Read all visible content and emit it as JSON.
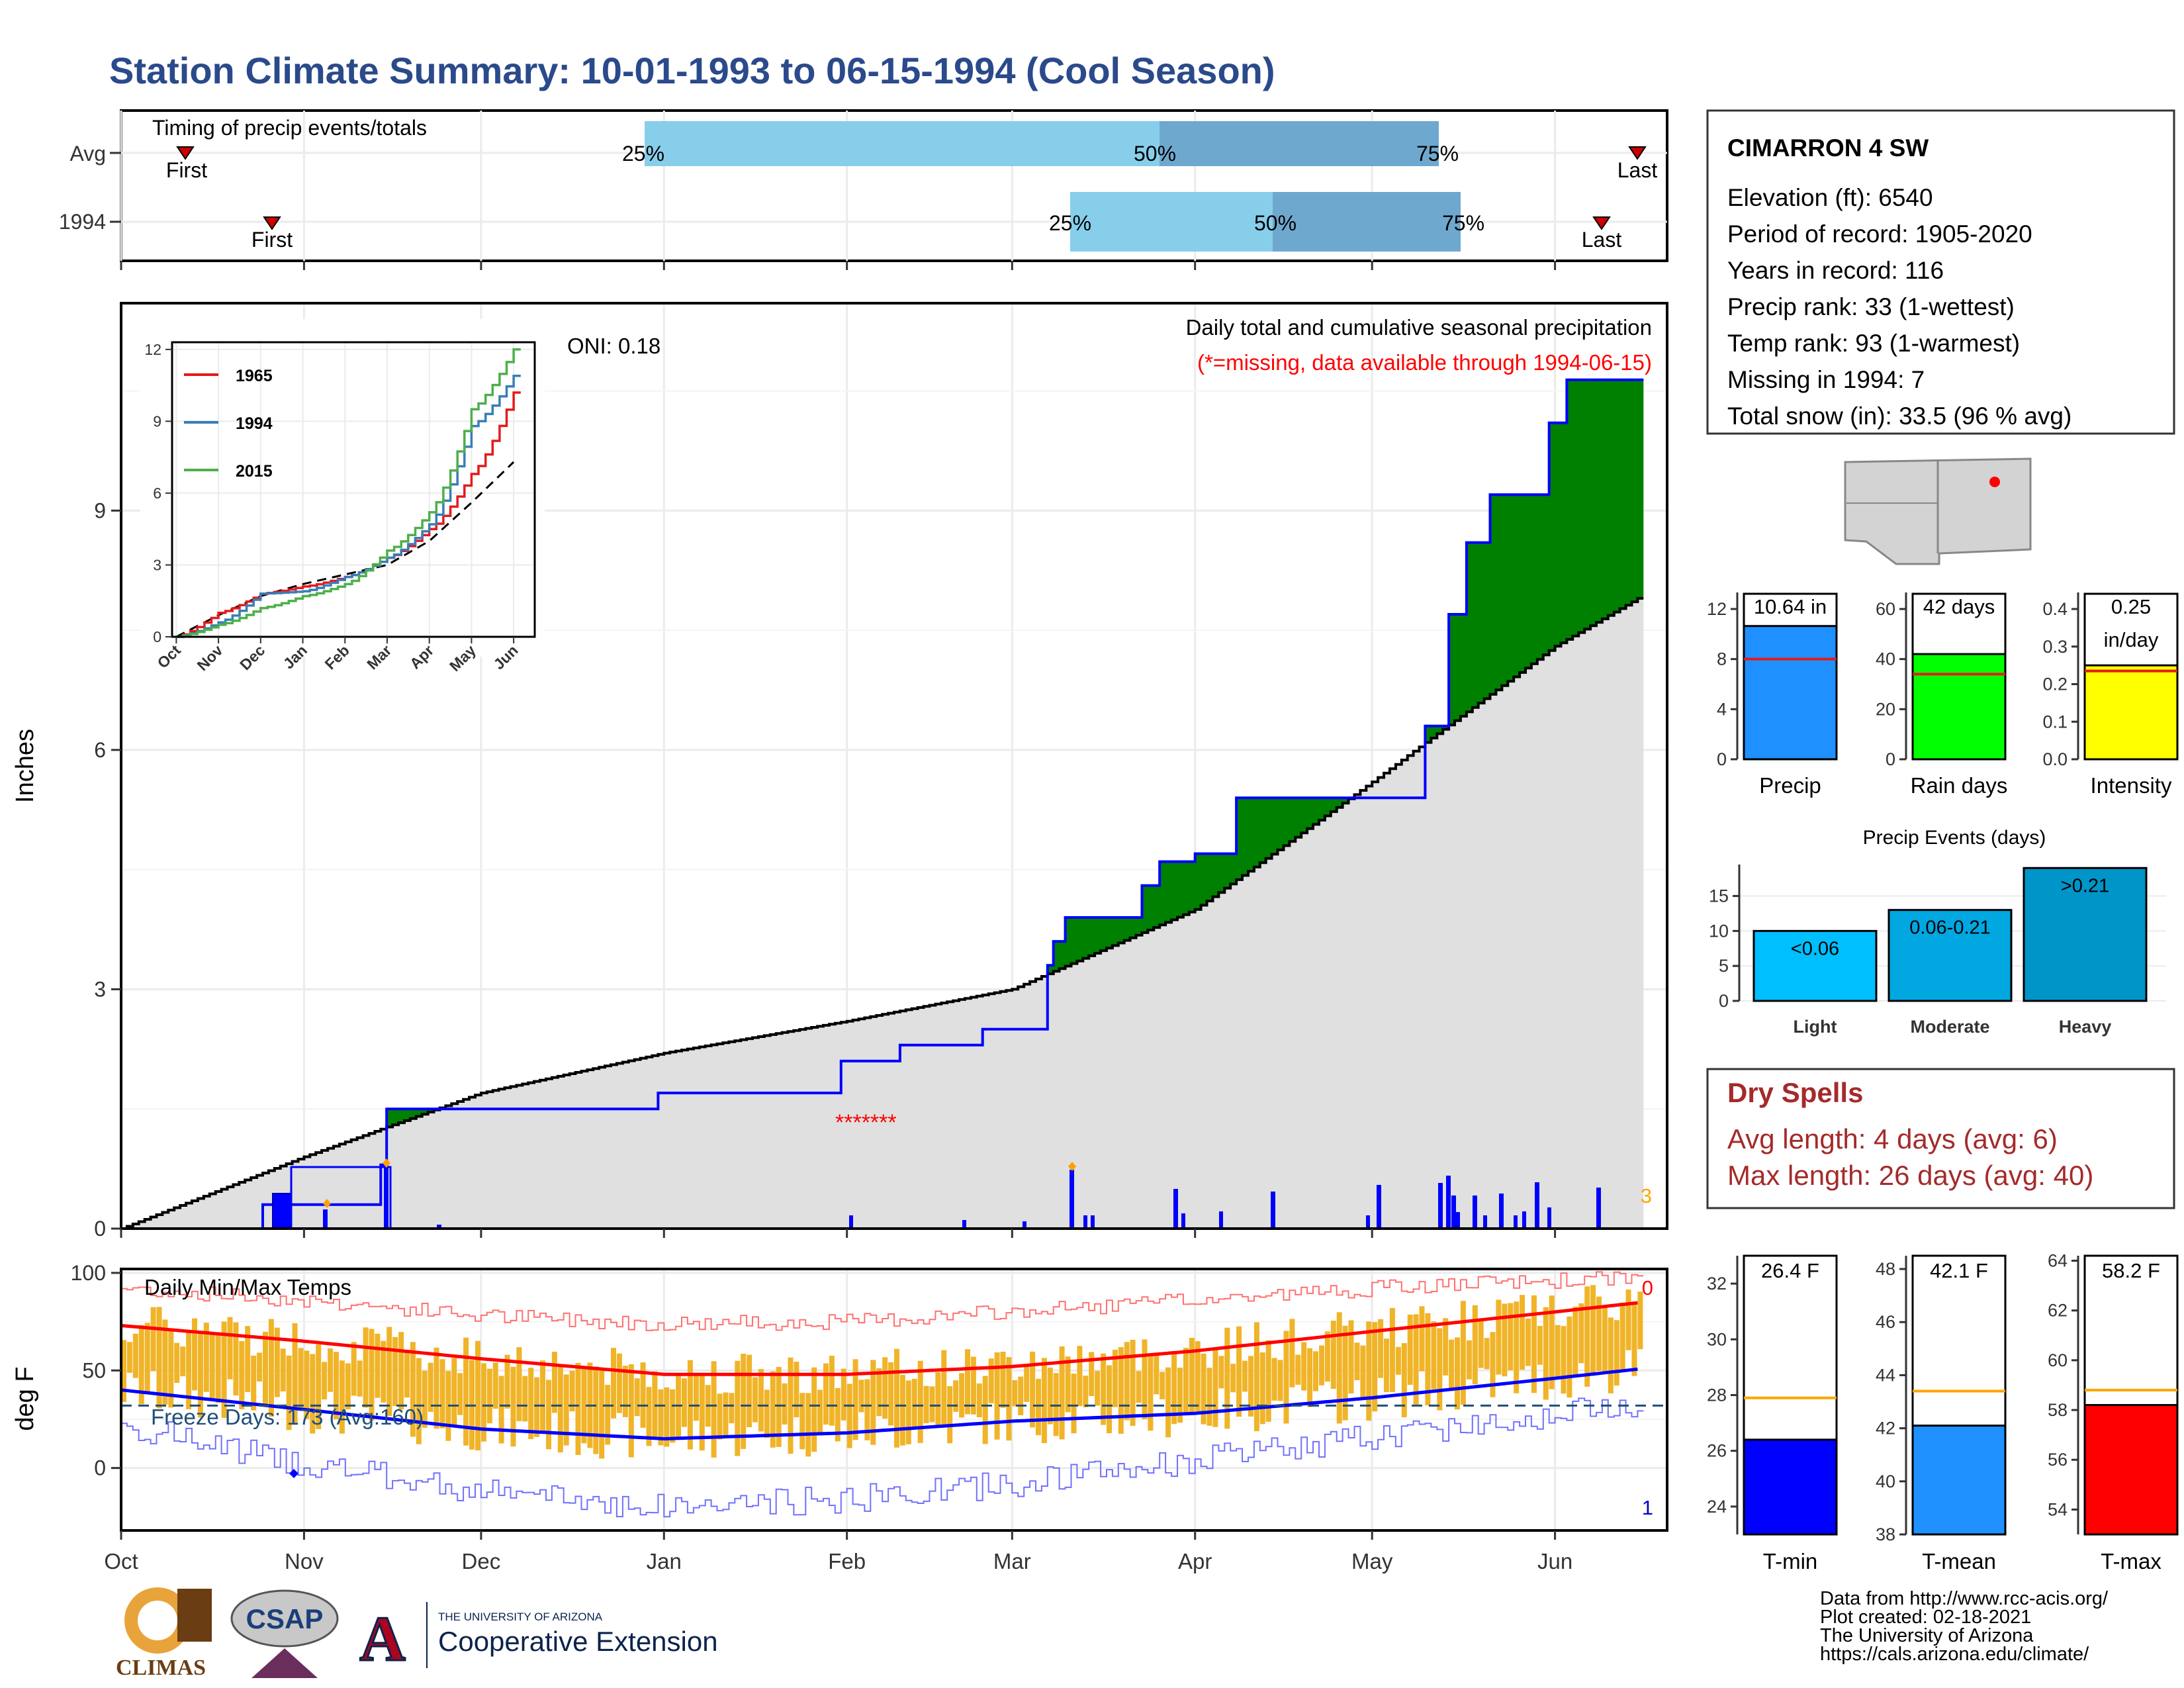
{
  "title": "Station Climate Summary: 10-01-1993 to 06-15-1994 (Cool Season)",
  "colors": {
    "title": "#2a4a8b",
    "light_blue": "#87ceeb",
    "mid_blue": "#6fa8cf",
    "brown": "#8b5a00",
    "green": "#008000",
    "grey_fill": "#e0e0e0",
    "orange": "#f0b429",
    "red": "#ff0000",
    "blue": "#0000ff",
    "dry_spell_red": "#a52a2a"
  },
  "timing": {
    "label": "Timing of precip events/totals",
    "rows": [
      "Avg",
      "1994"
    ],
    "avg": {
      "p25_label": "25%",
      "p50_label": "50%",
      "p75_label": "75%",
      "first_label": "First",
      "last_label": "Last"
    },
    "y1994": {
      "p25_label": "25%",
      "p50_label": "50%",
      "p75_label": "75%",
      "first_label": "First",
      "last_label": "Last"
    }
  },
  "main": {
    "ylabel": "Inches",
    "yticks": [
      "0",
      "3",
      "6",
      "9"
    ],
    "header": "Daily total and cumulative seasonal precipitation",
    "missing_note": "(*=missing, data available through 1994-06-15)",
    "oni": "ONI: 0.18",
    "corner_count": "3"
  },
  "inset": {
    "yticks": [
      "0",
      "3",
      "6",
      "9",
      "12"
    ],
    "xticks": [
      "Oct",
      "Nov",
      "Dec",
      "Jan",
      "Feb",
      "Mar",
      "Apr",
      "May",
      "Jun"
    ],
    "legend": [
      {
        "name": "1965",
        "color": "#e41a1c"
      },
      {
        "name": "1994",
        "color": "#377eb8"
      },
      {
        "name": "2015",
        "color": "#4daf4a"
      }
    ]
  },
  "temps": {
    "label": "Daily Min/Max Temps",
    "ylabel": "deg F",
    "yticks": [
      "0",
      "50",
      "100"
    ],
    "freeze": "Freeze Days: 173 (Avg:160)",
    "top_count": "0",
    "bottom_count": "1",
    "xticks": [
      "Oct",
      "Nov",
      "Dec",
      "Jan",
      "Feb",
      "Mar",
      "Apr",
      "May",
      "Jun"
    ]
  },
  "station": {
    "name": "CIMARRON 4 SW",
    "lines": [
      "Elevation (ft): 6540",
      "Period of record: 1905-2020",
      "Years in record: 116",
      "Precip rank: 33 (1-wettest)",
      "Temp rank: 93 (1-warmest)",
      "Missing in 1994: 7",
      "Total snow (in): 33.5 (96 % avg)"
    ]
  },
  "mini_bars": [
    {
      "label": "Precip",
      "value_label": "10.64 in",
      "value_label2": "",
      "value": 10.64,
      "avg": 8.0,
      "ymax": 12,
      "yticks": [
        "0",
        "4",
        "8",
        "12"
      ],
      "color": "#1e90ff"
    },
    {
      "label": "Rain days",
      "value_label": "42 days",
      "value_label2": "",
      "value": 42,
      "avg": 34,
      "ymax": 60,
      "yticks": [
        "0",
        "20",
        "40",
        "60"
      ],
      "color": "#00ff00"
    },
    {
      "label": "Intensity",
      "value_label": "0.25",
      "value_label2": "in/day",
      "value": 0.25,
      "avg": 0.235,
      "ymax": 0.4,
      "yticks": [
        "0.0",
        "0.1",
        "0.2",
        "0.3",
        "0.4"
      ],
      "color": "#ffff00"
    }
  ],
  "events": {
    "title": "Precip Events (days)",
    "yticks": [
      "0",
      "5",
      "10",
      "15"
    ],
    "bars": [
      {
        "label": "Light",
        "value_label": "<0.06",
        "value": 10,
        "color": "#00bfff"
      },
      {
        "label": "Moderate",
        "value_label": "0.06-0.21",
        "value": 13,
        "color": "#00a7e1"
      },
      {
        "label": "Heavy",
        "value_label": ">0.21",
        "value": 19,
        "color": "#0095c8"
      }
    ]
  },
  "dry_spells": {
    "title": "Dry Spells",
    "avg": "Avg length: 4 days (avg: 6)",
    "max": "Max length: 26 days (avg: 40)"
  },
  "temp_bars": [
    {
      "label": "T-min",
      "value_label": "26.4 F",
      "value": 26.4,
      "avg": 27.9,
      "ymin": 23,
      "ymax": 33,
      "yticks": [
        "24",
        "26",
        "28",
        "30",
        "32"
      ],
      "color": "#0000ff"
    },
    {
      "label": "T-mean",
      "value_label": "42.1 F",
      "value": 42.1,
      "avg": 43.4,
      "ymin": 38,
      "ymax": 48.5,
      "yticks": [
        "38",
        "40",
        "42",
        "44",
        "46",
        "48"
      ],
      "color": "#1e90ff"
    },
    {
      "label": "T-max",
      "value_label": "58.2 F",
      "value": 58.2,
      "avg": 58.8,
      "ymin": 53,
      "ymax": 64.2,
      "yticks": [
        "54",
        "56",
        "58",
        "60",
        "62",
        "64"
      ],
      "color": "#ff0000"
    }
  ],
  "footer": [
    "Data from http://www.rcc-acis.org/",
    "Plot created: 02-18-2021",
    "The University of Arizona",
    "https://cals.arizona.edu/climate/"
  ],
  "logos": {
    "climas": "CLIMAS",
    "csap": "CSAP",
    "ua_small": "THE UNIVERSITY OF ARIZONA",
    "coop": "Cooperative Extension"
  },
  "chart_data": [
    {
      "type": "area",
      "title": "Daily total and cumulative seasonal precipitation",
      "ylabel": "Inches",
      "ylim": [
        0,
        11.6
      ],
      "series": [
        {
          "name": "",
          "kind": "cumulative",
          "x": [
            "1993-10-01",
            "1993-10-25",
            "1993-11-14",
            "1993-11-15",
            "1993-12-31",
            "1994-01-31",
            "1994-02-10",
            "1994-02-24",
            "1994-03-07",
            "1994-03-08",
            "1994-03-10",
            "1994-03-23",
            "1994-03-26",
            "1994-04-01",
            "1994-04-08",
            "1994-04-30",
            "1994-05-10",
            "1994-05-14",
            "1994-05-17",
            "1994-05-21",
            "1994-05-31",
            "1994-06-03",
            "1994-06-15"
          ],
          "values": [
            0,
            0.3,
            0.8,
            1.5,
            1.7,
            2.1,
            2.3,
            2.5,
            3.3,
            3.6,
            3.9,
            4.3,
            4.6,
            4.7,
            5.4,
            5.4,
            6.3,
            7.7,
            8.6,
            9.2,
            10.1,
            10.64,
            10.64
          ]
        },
        {
          "name": "",
          "kind": "average",
          "x": [
            "1993-10-01",
            "1993-11-01",
            "1993-12-01",
            "1994-01-01",
            "1994-02-01",
            "1994-03-01",
            "1994-04-01",
            "1994-05-01",
            "1994-06-01",
            "1994-06-15"
          ],
          "values": [
            0,
            0.9,
            1.7,
            2.2,
            2.6,
            3.0,
            4.0,
            5.6,
            7.3,
            7.9
          ]
        }
      ]
    },
    {
      "type": "line",
      "x": [
        "Oct",
        "Nov",
        "Dec",
        "Jan",
        "Feb",
        "Mar",
        "Apr",
        "May",
        "Jun"
      ],
      "ylim": [
        0,
        12
      ],
      "series": [
        {
          "name": "1965",
          "values": [
            0,
            1.0,
            1.8,
            2.1,
            2.5,
            3.3,
            4.5,
            6.8,
            10.2
          ]
        },
        {
          "name": "1994",
          "values": [
            0,
            0.6,
            1.8,
            1.9,
            2.5,
            3.3,
            4.7,
            8.8,
            10.9
          ]
        },
        {
          "name": "2015",
          "values": [
            0,
            0.5,
            1.2,
            1.7,
            2.2,
            3.6,
            5.2,
            9.5,
            12.0
          ]
        },
        {
          "name": "",
          "kind": "average",
          "values": [
            0,
            0.9,
            1.7,
            2.2,
            2.6,
            3.0,
            4.0,
            5.6,
            7.3
          ]
        }
      ]
    },
    {
      "type": "bar",
      "title": "Daily Min/Max Temps",
      "ylabel": "deg F",
      "ylim": [
        -32,
        102
      ],
      "x": [
        "Oct",
        "Nov",
        "Dec",
        "Jan",
        "Feb",
        "Mar",
        "Apr",
        "May",
        "Jun"
      ],
      "series": [
        {
          "name": "",
          "kind": "avg_max",
          "values": [
            73,
            65,
            56,
            48,
            48,
            52,
            60,
            70,
            80
          ]
        },
        {
          "name": "",
          "kind": "avg_min",
          "values": [
            40,
            30,
            20,
            15,
            18,
            24,
            28,
            36,
            46
          ]
        },
        {
          "name": "",
          "kind": "record_high",
          "values": [
            92,
            86,
            78,
            74,
            75,
            80,
            86,
            92,
            96
          ]
        },
        {
          "name": "",
          "kind": "record_low",
          "values": [
            22,
            2,
            -12,
            -20,
            -16,
            -8,
            4,
            16,
            28
          ]
        },
        {
          "name": "",
          "kind": "freeze_line",
          "values": [
            32,
            32,
            32,
            32,
            32,
            32,
            32,
            32,
            32
          ]
        }
      ]
    },
    {
      "type": "bar",
      "categories": [
        "Precip"
      ],
      "values": [
        10.64
      ],
      "ylim": [
        0,
        12
      ]
    },
    {
      "type": "bar",
      "categories": [
        "Rain days"
      ],
      "values": [
        42
      ],
      "ylim": [
        0,
        60
      ]
    },
    {
      "type": "bar",
      "categories": [
        "Intensity"
      ],
      "values": [
        0.25
      ],
      "ylim": [
        0,
        0.4
      ]
    },
    {
      "type": "bar",
      "title": "Precip Events (days)",
      "categories": [
        "Light",
        "Moderate",
        "Heavy"
      ],
      "values": [
        10,
        13,
        19
      ],
      "ylim": [
        0,
        19
      ]
    },
    {
      "type": "bar",
      "categories": [
        "T-min"
      ],
      "values": [
        26.4
      ],
      "ylim": [
        23,
        33
      ]
    },
    {
      "type": "bar",
      "categories": [
        "T-mean"
      ],
      "values": [
        42.1
      ],
      "ylim": [
        38,
        48.5
      ]
    },
    {
      "type": "bar",
      "categories": [
        "T-max"
      ],
      "values": [
        58.2
      ],
      "ylim": [
        53,
        64.2
      ]
    }
  ]
}
